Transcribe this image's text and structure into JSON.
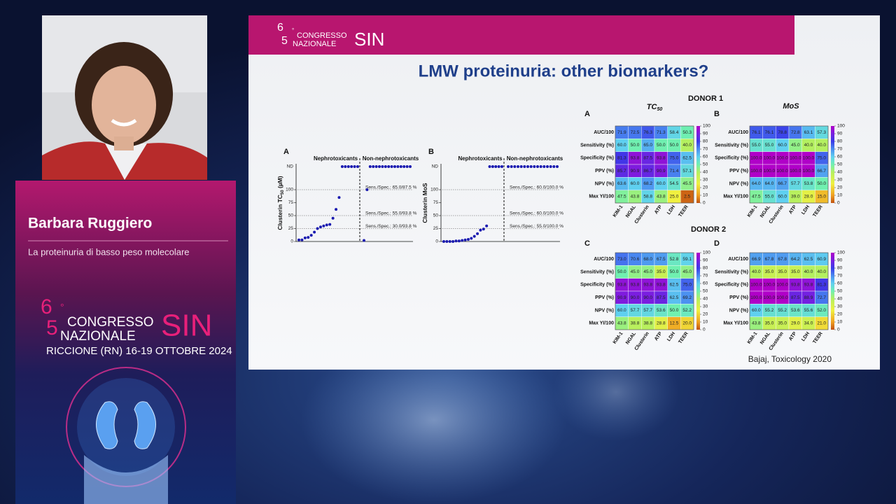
{
  "speaker": {
    "name": "Barbara Ruggiero",
    "talk": "La proteinuria di basso peso molecolare"
  },
  "event": {
    "digit1": "6",
    "digit2": "5",
    "degree": "°",
    "line1": "CONGRESSO",
    "line2": "NAZIONALE",
    "acronym": "SIN",
    "venue": "RICCIONE (RN) 16-19 OTTOBRE 2024"
  },
  "slide": {
    "title": "LMW proteinuria: other biomarkers?",
    "citation": "Bajaj, Toxicology 2020",
    "scatter": [
      {
        "letter": "A",
        "ylabel": "Clusterin TC",
        "ylabel_sub": "50",
        "ylabel_unit": " (µM)",
        "groups": [
          "Nephrotoxicants",
          "Non-nephrotoxicants"
        ],
        "nd_label": "ND",
        "ylim": [
          0,
          100
        ],
        "yticks": [
          100,
          75,
          50,
          25,
          0
        ],
        "annotations": [
          "Sens./Spec.: 65.0/87.5 %",
          "Sens./Spec.: 55.0/93.8 %",
          "Sens./Spec.: 30.0/93.8 %"
        ],
        "points": [
          [
            3,
            3,
            7,
            8,
            12,
            18,
            25,
            28,
            30,
            32,
            33,
            45,
            62,
            85,
            "ND",
            "ND",
            "ND",
            "ND",
            "ND",
            "ND"
          ],
          [
            2,
            100,
            "ND",
            "ND",
            "ND",
            "ND",
            "ND",
            "ND",
            "ND",
            "ND",
            "ND",
            "ND",
            "ND",
            "ND",
            "ND",
            "ND"
          ]
        ]
      },
      {
        "letter": "B",
        "ylabel": "Clusterin MoS",
        "groups": [
          "Nephrotoxicants",
          "Non-nephrotoxicants"
        ],
        "nd_label": "ND",
        "ylim": [
          0,
          100
        ],
        "yticks": [
          100,
          75,
          50,
          25,
          0
        ],
        "annotations": [
          "Sens./Spec.: 60.0/100.0 %",
          "Sens./Spec.: 60.0/100.0 %",
          "Sens./Spec.: 55.0/100.0 %"
        ],
        "points": [
          [
            0,
            0,
            0,
            0,
            1,
            1,
            2,
            3,
            4,
            6,
            10,
            15,
            22,
            24,
            30,
            "ND",
            "ND",
            "ND",
            "ND",
            "ND"
          ],
          [
            "ND",
            "ND",
            "ND",
            "ND",
            "ND",
            "ND",
            "ND",
            "ND",
            "ND",
            "ND",
            "ND",
            "ND",
            "ND",
            "ND",
            "ND",
            "ND"
          ]
        ]
      }
    ],
    "donors": [
      "DONOR 1",
      "DONOR 2"
    ],
    "row_labels": [
      "AUC/100",
      "Sensitivity (%)",
      "Specificity (%)",
      "PPV (%)",
      "NPV (%)",
      "Max YI/100"
    ],
    "col_labels": [
      "KIM-1",
      "NGAL",
      "Clusterin",
      "ATP",
      "LDH",
      "TEER"
    ],
    "colorbar_ticks": [
      100,
      90,
      80,
      70,
      60,
      50,
      40,
      30,
      20,
      10,
      0
    ],
    "heatmaps": [
      {
        "letter": "A",
        "title": "TC",
        "title_sub": "50",
        "cells": [
          [
            "71.9",
            "72.5",
            "76.3",
            "71.3",
            "58.4",
            "50.3"
          ],
          [
            "60.0",
            "50.0",
            "65.0",
            "50.0",
            "50.0",
            "40.0"
          ],
          [
            "81.3",
            "93.8",
            "87.5",
            "93.8",
            "75.0",
            "62.5"
          ],
          [
            "85.7",
            "90.9",
            "86.7",
            "90.9",
            "71.4",
            "57.1"
          ],
          [
            "63.6",
            "60.0",
            "68.2",
            "60.0",
            "54.5",
            "45.5"
          ],
          [
            "47.5",
            "43.8",
            "58.8",
            "43.8",
            "25.0",
            "2.5"
          ]
        ]
      },
      {
        "letter": "B",
        "title": "MoS",
        "cells": [
          [
            "76.1",
            "76.1",
            "78.8",
            "72.8",
            "63.1",
            "57.3"
          ],
          [
            "55.0",
            "55.0",
            "60.0",
            "45.0",
            "40.0",
            "40.0"
          ],
          [
            "100.0",
            "100.0",
            "100.0",
            "100.0",
            "100.0",
            "75.0"
          ],
          [
            "100.0",
            "100.0",
            "100.0",
            "100.0",
            "100.0",
            "66.7"
          ],
          [
            "64.0",
            "64.0",
            "66.7",
            "57.7",
            "53.8",
            "50.0"
          ],
          [
            "47.5",
            "55.0",
            "60.0",
            "39.0",
            "28.0",
            "15.0"
          ]
        ]
      },
      {
        "letter": "C",
        "cells": [
          [
            "73.0",
            "70.6",
            "68.0",
            "67.5",
            "52.8",
            "59.1"
          ],
          [
            "50.0",
            "45.0",
            "45.0",
            "35.0",
            "50.0",
            "45.0"
          ],
          [
            "93.8",
            "93.8",
            "93.8",
            "93.8",
            "62.5",
            "75.0"
          ],
          [
            "90.9",
            "90.0",
            "90.0",
            "87.5",
            "62.5",
            "69.2"
          ],
          [
            "60.0",
            "57.7",
            "57.7",
            "53.6",
            "50.0",
            "52.2"
          ],
          [
            "43.8",
            "38.8",
            "38.8",
            "28.8",
            "12.5",
            "20.0"
          ]
        ]
      },
      {
        "letter": "D",
        "cells": [
          [
            "66.9",
            "67.8",
            "67.8",
            "64.2",
            "62.5",
            "60.9"
          ],
          [
            "40.0",
            "35.0",
            "35.0",
            "35.0",
            "40.0",
            "40.0"
          ],
          [
            "100.0",
            "100.0",
            "100.0",
            "93.8",
            "93.8",
            "81.3"
          ],
          [
            "100.0",
            "100.0",
            "100.0",
            "87.5",
            "88.9",
            "72.7"
          ],
          [
            "60.0",
            "55.2",
            "55.2",
            "53.6",
            "55.6",
            "52.0"
          ],
          [
            "43.8",
            "35.0",
            "35.0",
            "29.0",
            "34.0",
            "21.0"
          ]
        ]
      }
    ]
  }
}
